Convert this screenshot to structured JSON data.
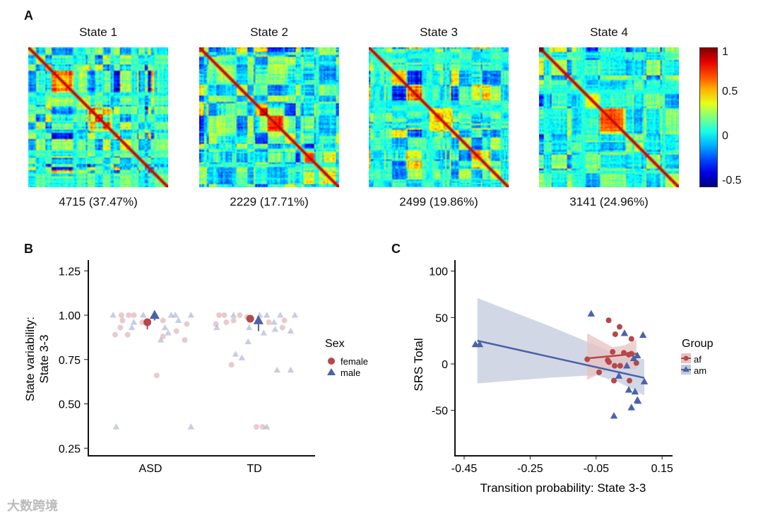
{
  "panel_labels": {
    "a": "A",
    "b": "B",
    "c": "C"
  },
  "watermark": "大数跨境",
  "chart_data": [
    {
      "type": "heatmap",
      "panel": "A",
      "states": [
        {
          "title": "State 1",
          "count_label": "4715 (37.47%)",
          "seed": 11
        },
        {
          "title": "State 2",
          "count_label": "2229 (17.71%)",
          "seed": 23
        },
        {
          "title": "State 3",
          "count_label": "2499 (19.86%)",
          "seed": 37
        },
        {
          "title": "State 4",
          "count_label": "3141 (24.96%)",
          "seed": 53
        }
      ],
      "colorbar": {
        "range": [
          -0.5,
          1
        ],
        "ticks": [
          "1",
          "0.5",
          "0",
          "-0.5"
        ],
        "tick_values": [
          1,
          0.5,
          0,
          -0.5
        ],
        "colormap": "jet"
      }
    },
    {
      "type": "scatter",
      "panel": "B",
      "ylabel_lines": [
        "State variability:",
        "State 3-3"
      ],
      "xlabel": "",
      "categories": [
        "ASD",
        "TD"
      ],
      "ylim": [
        0.22,
        1.3
      ],
      "yticks": [
        "1.25",
        "1.00",
        "0.75",
        "0.50",
        "0.25"
      ],
      "ytick_values": [
        1.25,
        1.0,
        0.75,
        0.5,
        0.25
      ],
      "legend": {
        "title": "Sex",
        "entries": [
          "female",
          "male"
        ],
        "position": "right"
      },
      "colors": {
        "female": "#b5484a",
        "male": "#4a62a8"
      },
      "points": [
        {
          "cat": 0,
          "sex": "male",
          "jitter": -0.36,
          "y": 1.0
        },
        {
          "cat": 0,
          "sex": "male",
          "jitter": -0.07,
          "y": 1.0
        },
        {
          "cat": 0,
          "sex": "male",
          "jitter": 0.2,
          "y": 1.0
        },
        {
          "cat": 0,
          "sex": "male",
          "jitter": 0.24,
          "y": 1.0
        },
        {
          "cat": 0,
          "sex": "male",
          "jitter": 0.39,
          "y": 1.0
        },
        {
          "cat": 0,
          "sex": "male",
          "jitter": -0.16,
          "y": 0.96
        },
        {
          "cat": 0,
          "sex": "male",
          "jitter": 0.14,
          "y": 0.93
        },
        {
          "cat": 0,
          "sex": "male",
          "jitter": 0.17,
          "y": 0.9
        },
        {
          "cat": 0,
          "sex": "male",
          "jitter": 0.1,
          "y": 0.86
        },
        {
          "cat": 0,
          "sex": "male",
          "jitter": 0.27,
          "y": 0.97
        },
        {
          "cat": 0,
          "sex": "male",
          "jitter": -0.33,
          "y": 0.37
        },
        {
          "cat": 0,
          "sex": "male",
          "jitter": 0.39,
          "y": 0.37
        },
        {
          "cat": 0,
          "sex": "male",
          "jitter": -0.18,
          "y": 0.93
        },
        {
          "cat": 0,
          "sex": "female",
          "jitter": -0.28,
          "y": 1.0
        },
        {
          "cat": 0,
          "sex": "female",
          "jitter": -0.21,
          "y": 1.0
        },
        {
          "cat": 0,
          "sex": "female",
          "jitter": -0.16,
          "y": 1.0
        },
        {
          "cat": 0,
          "sex": "female",
          "jitter": -0.27,
          "y": 0.97
        },
        {
          "cat": 0,
          "sex": "female",
          "jitter": -0.29,
          "y": 0.93
        },
        {
          "cat": 0,
          "sex": "female",
          "jitter": -0.34,
          "y": 0.89
        },
        {
          "cat": 0,
          "sex": "female",
          "jitter": -0.22,
          "y": 0.89
        },
        {
          "cat": 0,
          "sex": "female",
          "jitter": -0.08,
          "y": 0.96
        },
        {
          "cat": 0,
          "sex": "female",
          "jitter": 0.12,
          "y": 0.97
        },
        {
          "cat": 0,
          "sex": "female",
          "jitter": 0.35,
          "y": 0.95
        },
        {
          "cat": 0,
          "sex": "female",
          "jitter": 0.25,
          "y": 0.91
        },
        {
          "cat": 0,
          "sex": "female",
          "jitter": 0.12,
          "y": 0.88
        },
        {
          "cat": 0,
          "sex": "female",
          "jitter": 0.33,
          "y": 0.86
        },
        {
          "cat": 0,
          "sex": "female",
          "jitter": 0.06,
          "y": 0.66
        },
        {
          "cat": 1,
          "sex": "female",
          "jitter": -0.34,
          "y": 1.0
        },
        {
          "cat": 1,
          "sex": "female",
          "jitter": -0.29,
          "y": 1.0
        },
        {
          "cat": 1,
          "sex": "female",
          "jitter": -0.14,
          "y": 1.0
        },
        {
          "cat": 1,
          "sex": "female",
          "jitter": -0.07,
          "y": 0.99
        },
        {
          "cat": 1,
          "sex": "female",
          "jitter": -0.37,
          "y": 0.95
        },
        {
          "cat": 1,
          "sex": "female",
          "jitter": -0.27,
          "y": 0.96
        },
        {
          "cat": 1,
          "sex": "female",
          "jitter": -0.2,
          "y": 0.97
        },
        {
          "cat": 1,
          "sex": "female",
          "jitter": 0.14,
          "y": 0.96
        },
        {
          "cat": 1,
          "sex": "female",
          "jitter": 0.29,
          "y": 0.97
        },
        {
          "cat": 1,
          "sex": "female",
          "jitter": 0.27,
          "y": 0.93
        },
        {
          "cat": 1,
          "sex": "female",
          "jitter": -0.22,
          "y": 0.72
        },
        {
          "cat": 1,
          "sex": "female",
          "jitter": 0.02,
          "y": 0.37
        },
        {
          "cat": 1,
          "sex": "female",
          "jitter": 0.08,
          "y": 0.37
        },
        {
          "cat": 1,
          "sex": "male",
          "jitter": -0.2,
          "y": 1.0
        },
        {
          "cat": 1,
          "sex": "male",
          "jitter": 0.05,
          "y": 1.0
        },
        {
          "cat": 1,
          "sex": "male",
          "jitter": 0.12,
          "y": 1.0
        },
        {
          "cat": 1,
          "sex": "male",
          "jitter": 0.25,
          "y": 1.0
        },
        {
          "cat": 1,
          "sex": "male",
          "jitter": 0.39,
          "y": 1.0
        },
        {
          "cat": 1,
          "sex": "male",
          "jitter": 0.19,
          "y": 0.96
        },
        {
          "cat": 1,
          "sex": "male",
          "jitter": -0.36,
          "y": 0.93
        },
        {
          "cat": 1,
          "sex": "male",
          "jitter": -0.05,
          "y": 0.93
        },
        {
          "cat": 1,
          "sex": "male",
          "jitter": 0.09,
          "y": 0.9
        },
        {
          "cat": 1,
          "sex": "male",
          "jitter": 0.2,
          "y": 0.92
        },
        {
          "cat": 1,
          "sex": "male",
          "jitter": 0.35,
          "y": 0.91
        },
        {
          "cat": 1,
          "sex": "male",
          "jitter": -0.06,
          "y": 0.85
        },
        {
          "cat": 1,
          "sex": "male",
          "jitter": -0.18,
          "y": 0.78
        },
        {
          "cat": 1,
          "sex": "male",
          "jitter": -0.12,
          "y": 0.76
        },
        {
          "cat": 1,
          "sex": "male",
          "jitter": 0.22,
          "y": 0.69
        },
        {
          "cat": 1,
          "sex": "male",
          "jitter": 0.35,
          "y": 0.69
        },
        {
          "cat": 1,
          "sex": "male",
          "jitter": 0.12,
          "y": 0.37
        }
      ],
      "means": [
        {
          "cat": 0,
          "sex": "female",
          "jitter": -0.03,
          "y": 0.96,
          "lo": 0.92,
          "hi": 0.97
        },
        {
          "cat": 0,
          "sex": "male",
          "jitter": 0.04,
          "y": 1.0,
          "lo": 0.97,
          "hi": 1.0
        },
        {
          "cat": 1,
          "sex": "female",
          "jitter": -0.04,
          "y": 0.98,
          "lo": 0.97,
          "hi": 0.99
        },
        {
          "cat": 1,
          "sex": "male",
          "jitter": 0.04,
          "y": 0.97,
          "lo": 0.91,
          "hi": 0.99
        }
      ]
    },
    {
      "type": "scatter",
      "panel": "C",
      "xlabel": "Transition probability: State 3-3",
      "ylabel": "SRS Total",
      "xlim": [
        -0.48,
        0.18
      ],
      "ylim": [
        -100,
        110
      ],
      "xticks": [
        "-0.45",
        "-0.25",
        "-0.05",
        "0.15"
      ],
      "xtick_values": [
        -0.45,
        -0.25,
        -0.05,
        0.15
      ],
      "yticks": [
        "100",
        "50",
        "0",
        "-50"
      ],
      "ytick_values": [
        100,
        50,
        0,
        -50
      ],
      "legend": {
        "title": "Group",
        "entries": [
          "af",
          "am"
        ],
        "position": "right"
      },
      "series": [
        {
          "name": "af",
          "marker": "circle",
          "color": "#b5484a",
          "band_color": "#e6c2c0",
          "points": [
            [
              -0.012,
              47
            ],
            [
              0.021,
              40
            ],
            [
              0.008,
              32
            ],
            [
              0.057,
              27
            ],
            [
              0.0,
              13
            ],
            [
              0.034,
              12
            ],
            [
              0.049,
              10
            ],
            [
              0.057,
              11
            ],
            [
              -0.077,
              5
            ],
            [
              -0.015,
              4
            ],
            [
              -0.011,
              2
            ],
            [
              0.006,
              -2
            ],
            [
              0.023,
              -2
            ],
            [
              0.072,
              1
            ],
            [
              -0.041,
              -9
            ],
            [
              0.004,
              -18
            ],
            [
              0.051,
              -18
            ]
          ],
          "fit": [
            [
              -0.077,
              6
            ],
            [
              0.072,
              11
            ]
          ],
          "band": [
            [
              -0.077,
              -17,
              33
            ],
            [
              0.0,
              -4,
              18
            ],
            [
              0.035,
              -4,
              20
            ],
            [
              0.072,
              -6,
              26
            ]
          ]
        },
        {
          "name": "am",
          "marker": "triangle",
          "color": "#4a62a8",
          "band_color": "#c3cade",
          "points": [
            [
              -0.416,
              21
            ],
            [
              -0.403,
              21
            ],
            [
              -0.065,
              54
            ],
            [
              0.036,
              33
            ],
            [
              0.092,
              31
            ],
            [
              0.075,
              9
            ],
            [
              0.064,
              6
            ],
            [
              0.043,
              -2
            ],
            [
              0.019,
              -13
            ],
            [
              0.096,
              -19
            ],
            [
              0.049,
              -28
            ],
            [
              0.068,
              -30
            ],
            [
              0.075,
              -39
            ],
            [
              0.077,
              -40
            ],
            [
              0.057,
              -47
            ],
            [
              0.004,
              -56
            ]
          ],
          "fit": [
            [
              -0.41,
              25
            ],
            [
              0.096,
              -15
            ]
          ],
          "band": [
            [
              -0.41,
              -21,
              71
            ],
            [
              -0.2,
              -15,
              42
            ],
            [
              -0.05,
              -12,
              20
            ],
            [
              0.02,
              -20,
              8
            ],
            [
              0.096,
              -34,
              5
            ]
          ]
        }
      ]
    }
  ]
}
